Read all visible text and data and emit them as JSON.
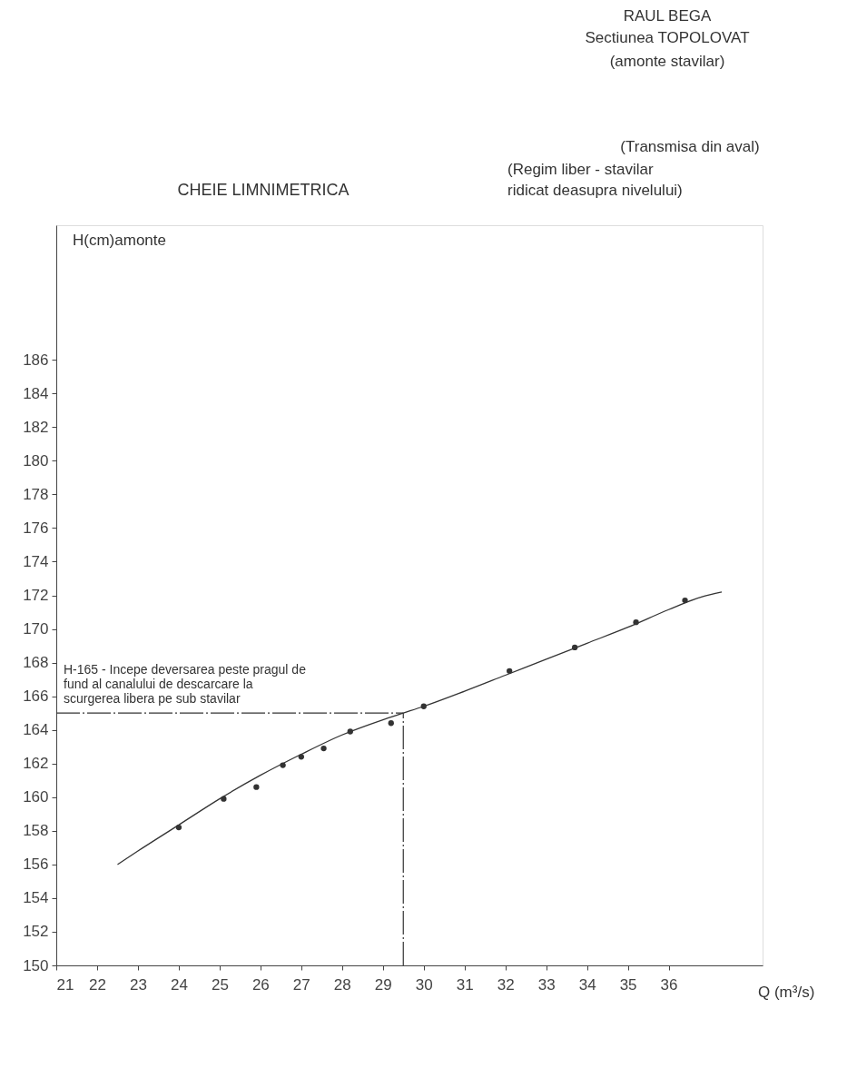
{
  "chart_data": {
    "type": "line",
    "title": "CHEIE LIMNIMETRICA",
    "xlabel": "Q (m³/s)",
    "ylabel": "H(cm)amonte",
    "annotations": [
      "RAUL     BEGA",
      "Sectiunea TOPOLOVAT",
      "(amonte stavilar)",
      "(Transmisa din aval)",
      "(Regim liber - stavilar",
      "ridicat deasupra nivelului)"
    ],
    "xlim": [
      21,
      38.3
    ],
    "xticks": [
      21,
      22,
      23,
      24,
      25,
      26,
      27,
      28,
      29,
      30,
      31,
      32,
      33,
      34,
      35,
      36
    ],
    "ylim": [
      150,
      194
    ],
    "yticks": [
      150,
      152,
      154,
      156,
      158,
      160,
      162,
      164,
      166,
      168,
      170,
      172,
      174,
      176,
      178,
      180,
      182,
      184,
      186
    ],
    "series": [
      {
        "color": "#333333",
        "marker": "none",
        "line_style": "solid",
        "x": [
          22.5,
          23.0,
          24.0,
          25.0,
          26.0,
          27.0,
          28.0,
          29.0,
          29.5,
          30.0,
          31.0,
          32.0,
          33.0,
          34.0,
          35.0,
          36.0,
          36.8,
          37.3
        ],
        "values": [
          156.0,
          156.8,
          158.35,
          159.9,
          161.3,
          162.55,
          163.7,
          164.6,
          165.0,
          165.4,
          166.3,
          167.25,
          168.2,
          169.15,
          170.1,
          171.15,
          171.9,
          172.2
        ]
      },
      {
        "type": "scatter",
        "color": "#333333",
        "marker": "circle",
        "x": [
          24.0,
          25.1,
          25.9,
          26.55,
          27.0,
          27.55,
          28.2,
          29.2,
          30.0,
          32.1,
          33.7,
          35.2,
          36.4
        ],
        "values": [
          158.2,
          159.9,
          160.6,
          161.9,
          162.4,
          162.9,
          163.9,
          164.4,
          165.4,
          167.5,
          168.9,
          170.4,
          171.7
        ]
      }
    ],
    "ref_lines": [
      {
        "axis": "y",
        "value": 165,
        "label": "H-165 - Incepe deversarea peste pragul de\nfund al canalului de descarcare la\nscurgerea libera pe sub stavilar",
        "color": "#333333",
        "line_style": "dashed"
      },
      {
        "axis": "x",
        "value": 29.5,
        "color": "#333333",
        "line_style": "dashed"
      }
    ]
  }
}
